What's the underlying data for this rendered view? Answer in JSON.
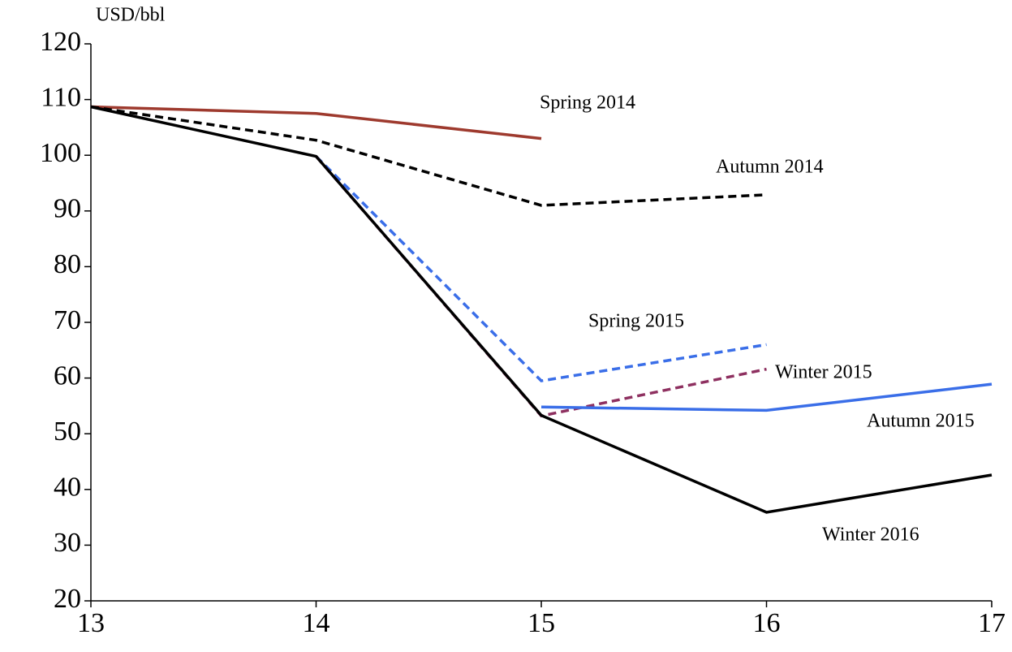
{
  "chart_data": {
    "type": "line",
    "y_label": "USD/bbl",
    "x": [
      13,
      14,
      15,
      16,
      17
    ],
    "xlim": [
      13,
      17
    ],
    "xticks": [
      13,
      14,
      15,
      16,
      17
    ],
    "ylim": [
      20,
      120
    ],
    "yticks": [
      20,
      30,
      40,
      50,
      60,
      70,
      80,
      90,
      100,
      110,
      120
    ],
    "grid": false,
    "series": [
      {
        "name": "Spring 2014",
        "color": "#9e3a2e",
        "dashed": false,
        "values": [
          108.7,
          107.5,
          103,
          null,
          null
        ]
      },
      {
        "name": "Autumn 2014",
        "color": "#000000",
        "dashed": true,
        "values": [
          108.7,
          102.7,
          91,
          92.9,
          null
        ]
      },
      {
        "name": "Spring 2015",
        "color": "#3a6ee8",
        "dashed": true,
        "values": [
          null,
          99.8,
          59.5,
          66,
          null
        ]
      },
      {
        "name": "Winter 2015",
        "color": "#8e3060",
        "dashed": true,
        "values": [
          null,
          99.8,
          53.2,
          61.6,
          null
        ]
      },
      {
        "name": "Autumn 2015",
        "color": "#3a6ee8",
        "dashed": false,
        "values": [
          null,
          null,
          54.8,
          54.2,
          58.9
        ]
      },
      {
        "name": "Winter 2016",
        "color": "#000000",
        "dashed": false,
        "values": [
          108.7,
          99.8,
          53.3,
          35.9,
          42.6
        ]
      }
    ]
  }
}
